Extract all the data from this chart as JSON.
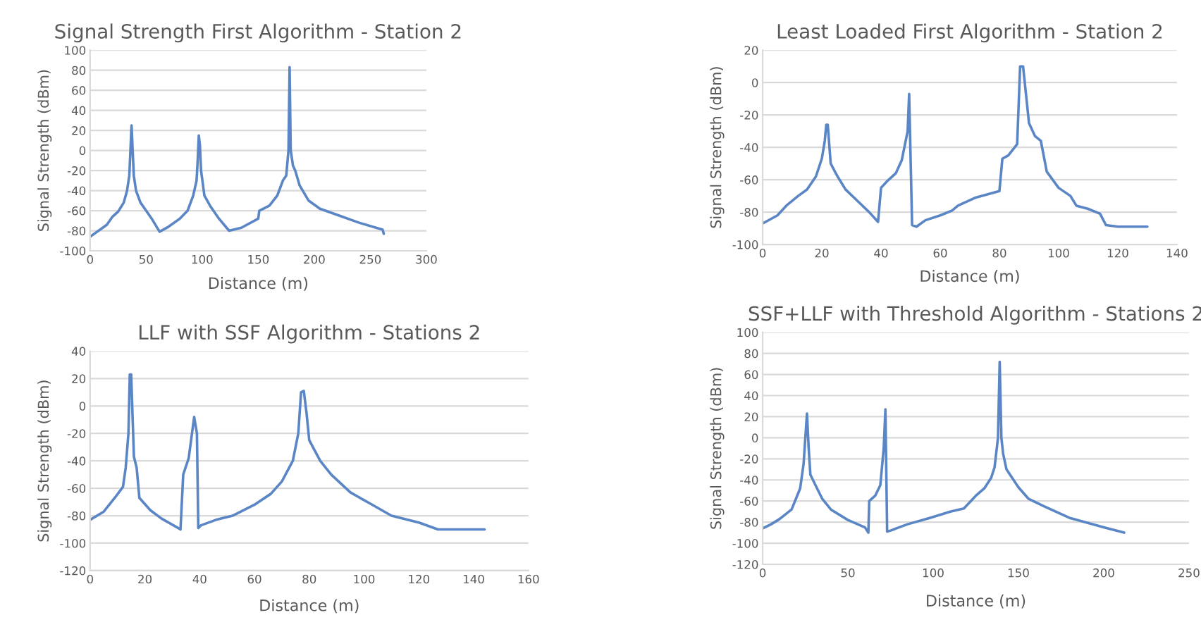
{
  "chart_data": [
    {
      "type": "line",
      "title": "Signal Strength First Algorithm - Station 2",
      "xlabel": "Distance (m)",
      "ylabel": "Signal Strength (dBm)",
      "xlim": [
        0,
        300
      ],
      "xticks": [
        0,
        50,
        100,
        150,
        200,
        250,
        300
      ],
      "ylim": [
        -100,
        100
      ],
      "yticks": [
        -100,
        -80,
        -60,
        -40,
        -20,
        0,
        20,
        40,
        60,
        80,
        100
      ],
      "grid": "y",
      "series": [
        {
          "color": "#5b86c5",
          "x": [
            0,
            5,
            10,
            15,
            20,
            25,
            30,
            33,
            35,
            36,
            37,
            38,
            39,
            41,
            45,
            50,
            55,
            62,
            70,
            80,
            87,
            92,
            95,
            96,
            97,
            98,
            99,
            102,
            107,
            115,
            124,
            135,
            150,
            151,
            160,
            167,
            172,
            175,
            177,
            178,
            179,
            181,
            183,
            187,
            195,
            205,
            220,
            240,
            261,
            262
          ],
          "values": [
            -86,
            -82,
            -78,
            -74,
            -66,
            -61,
            -52,
            -40,
            -25,
            0,
            25,
            0,
            -25,
            -40,
            -52,
            -60,
            -68,
            -81,
            -76,
            -68,
            -60,
            -45,
            -30,
            -10,
            15,
            5,
            -20,
            -45,
            -55,
            -68,
            -80,
            -77,
            -68,
            -60,
            -55,
            -45,
            -30,
            -25,
            0,
            83,
            0,
            -15,
            -20,
            -35,
            -50,
            -58,
            -64,
            -72,
            -79,
            -83
          ]
        }
      ]
    },
    {
      "type": "line",
      "title": "Least Loaded First Algorithm - Station 2",
      "xlabel": "Distance (m)",
      "ylabel": "Signal Strength (dBm)",
      "xlim": [
        0,
        140
      ],
      "xticks": [
        0,
        20,
        40,
        60,
        80,
        100,
        120,
        140
      ],
      "ylim": [
        -100,
        20
      ],
      "yticks": [
        -100,
        -80,
        -60,
        -40,
        -20,
        0,
        20
      ],
      "grid": "y",
      "series": [
        {
          "color": "#5b86c5",
          "x": [
            0,
            5,
            8,
            12,
            15,
            18,
            20,
            21,
            21.5,
            22,
            23,
            25,
            28,
            32,
            36,
            39,
            40,
            42,
            45,
            47,
            49,
            49.5,
            50.5,
            52,
            55,
            60,
            64,
            66,
            72,
            78,
            80,
            81,
            83,
            86,
            87,
            88,
            90,
            92,
            94,
            96,
            100,
            104,
            106,
            110,
            114,
            116,
            120,
            130
          ],
          "values": [
            -87,
            -82,
            -76,
            -70,
            -66,
            -58,
            -47,
            -36,
            -26,
            -26,
            -50,
            -57,
            -66,
            -73,
            -80,
            -86,
            -65,
            -61,
            -56,
            -48,
            -30,
            -7,
            -88,
            -89,
            -85,
            -82,
            -79,
            -76,
            -71,
            -68,
            -67,
            -47,
            -45,
            -38,
            10,
            10,
            -25,
            -33,
            -36,
            -55,
            -65,
            -70,
            -76,
            -78,
            -81,
            -88,
            -89,
            -89
          ]
        }
      ]
    },
    {
      "type": "line",
      "title": "LLF with SSF Algorithm - Stations 2",
      "xlabel": "Distance (m)",
      "ylabel": "Signal Strength (dBm)",
      "xlim": [
        0,
        160
      ],
      "xticks": [
        0,
        20,
        40,
        60,
        80,
        100,
        120,
        140,
        160
      ],
      "ylim": [
        -120,
        40
      ],
      "yticks": [
        -120,
        -100,
        -80,
        -60,
        -40,
        -20,
        0,
        20,
        40
      ],
      "grid": "y",
      "series": [
        {
          "color": "#5b86c5",
          "x": [
            0,
            5,
            9,
            12,
            13,
            14,
            14.5,
            15,
            16,
            17,
            18,
            22,
            26,
            33,
            34,
            36,
            38,
            39,
            39.5,
            40.5,
            46,
            52,
            60,
            66,
            70,
            74,
            76,
            77,
            78,
            79,
            80,
            84,
            88,
            95,
            103,
            110,
            120,
            127,
            144
          ],
          "values": [
            -83,
            -77,
            -67,
            -59,
            -45,
            -20,
            23,
            23,
            -37,
            -45,
            -67,
            -76,
            -82,
            -90,
            -50,
            -38,
            -8,
            -20,
            -89,
            -87,
            -83,
            -80,
            -72,
            -64,
            -55,
            -40,
            -20,
            10,
            11,
            -5,
            -25,
            -40,
            -50,
            -63,
            -72,
            -80,
            -85,
            -90,
            -90
          ]
        }
      ]
    },
    {
      "type": "line",
      "title": "SSF+LLF with Threshold Algorithm - Stations 2",
      "xlabel": "Distance (m)",
      "ylabel": "Signal Strength (dBm)",
      "xlim": [
        0,
        250
      ],
      "xticks": [
        0,
        50,
        100,
        150,
        200,
        250
      ],
      "ylim": [
        -120,
        100
      ],
      "yticks": [
        -120,
        -100,
        -80,
        -60,
        -40,
        -20,
        0,
        20,
        40,
        60,
        80,
        100
      ],
      "grid": "y",
      "series": [
        {
          "color": "#5b86c5",
          "x": [
            0,
            5,
            10,
            17,
            22,
            24,
            26,
            27,
            28,
            31,
            35,
            40,
            50,
            60,
            62,
            62.5,
            66,
            69,
            71,
            72,
            73,
            75,
            85,
            98,
            110,
            118,
            125,
            130,
            134,
            136,
            138,
            139,
            140,
            141,
            143,
            150,
            156,
            165,
            180,
            200,
            212
          ],
          "values": [
            -86,
            -82,
            -77,
            -68,
            -48,
            -25,
            23,
            -10,
            -35,
            -45,
            -58,
            -68,
            -78,
            -85,
            -90,
            -60,
            -55,
            -45,
            -10,
            27,
            -89,
            -88,
            -82,
            -76,
            -70,
            -67,
            -55,
            -48,
            -38,
            -28,
            0,
            72,
            0,
            -15,
            -30,
            -47,
            -58,
            -65,
            -76,
            -85,
            -90
          ]
        }
      ]
    }
  ]
}
